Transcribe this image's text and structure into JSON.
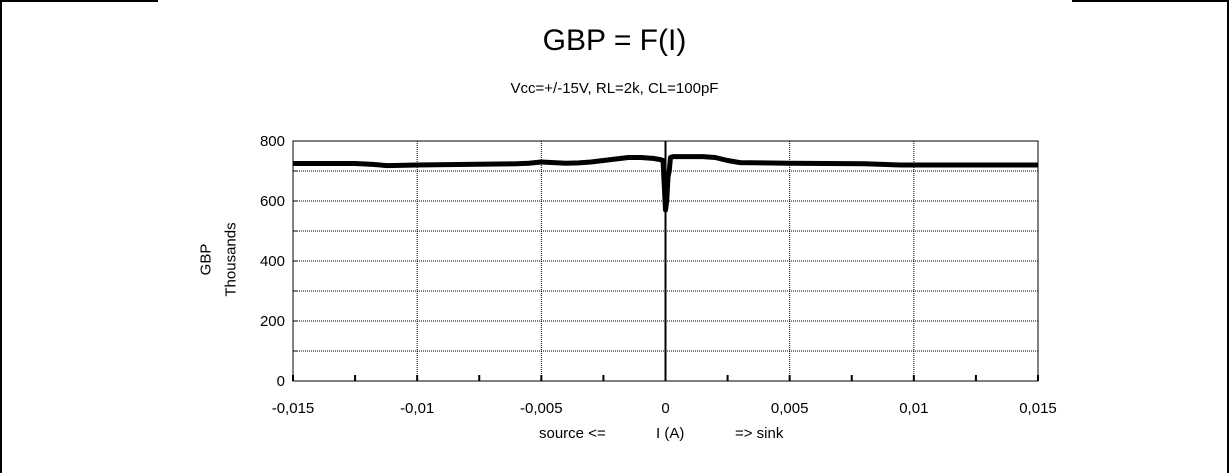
{
  "chart_data": {
    "type": "line",
    "title": "GBP = F(I)",
    "subtitle": "Vcc=+/-15V, RL=2k, CL=100pF",
    "ylabel": "GBP",
    "ylabel_unit": "Thousands",
    "xlabel": {
      "left": "source <=",
      "center": "I (A)",
      "right": "=> sink"
    },
    "xlim": [
      -0.015,
      0.015
    ],
    "ylim": [
      0,
      800
    ],
    "x_ticks": [
      -0.015,
      -0.01,
      -0.005,
      0,
      0.005,
      0.01,
      0.015
    ],
    "x_tick_labels": [
      "-0,015",
      "-0,01",
      "-0,005",
      "0",
      "0,005",
      "0,01",
      "0,015"
    ],
    "y_ticks": [
      0,
      200,
      400,
      600,
      800
    ],
    "y_tick_labels": [
      "0",
      "200",
      "400",
      "600",
      "800"
    ],
    "grid": true,
    "series": [
      {
        "color": "#000000",
        "x": [
          -0.015,
          -0.0125,
          -0.0118,
          -0.0112,
          -0.01,
          -0.008,
          -0.006,
          -0.0055,
          -0.005,
          -0.0045,
          -0.004,
          -0.0035,
          -0.003,
          -0.0025,
          -0.002,
          -0.0015,
          -0.001,
          -0.0005,
          -0.0002,
          -0.0001,
          0,
          5e-05,
          0.0001,
          0.00015,
          0.0002,
          0.0003,
          0.0005,
          0.001,
          0.0015,
          0.002,
          0.0025,
          0.003,
          0.005,
          0.008,
          0.0095,
          0.0115,
          0.015
        ],
        "y": [
          725,
          725,
          722,
          718,
          720,
          722,
          724,
          726,
          730,
          728,
          726,
          727,
          730,
          735,
          740,
          745,
          745,
          742,
          738,
          735,
          570,
          600,
          680,
          700,
          745,
          748,
          748,
          748,
          748,
          745,
          735,
          728,
          726,
          724,
          720,
          720,
          720
        ]
      }
    ]
  }
}
